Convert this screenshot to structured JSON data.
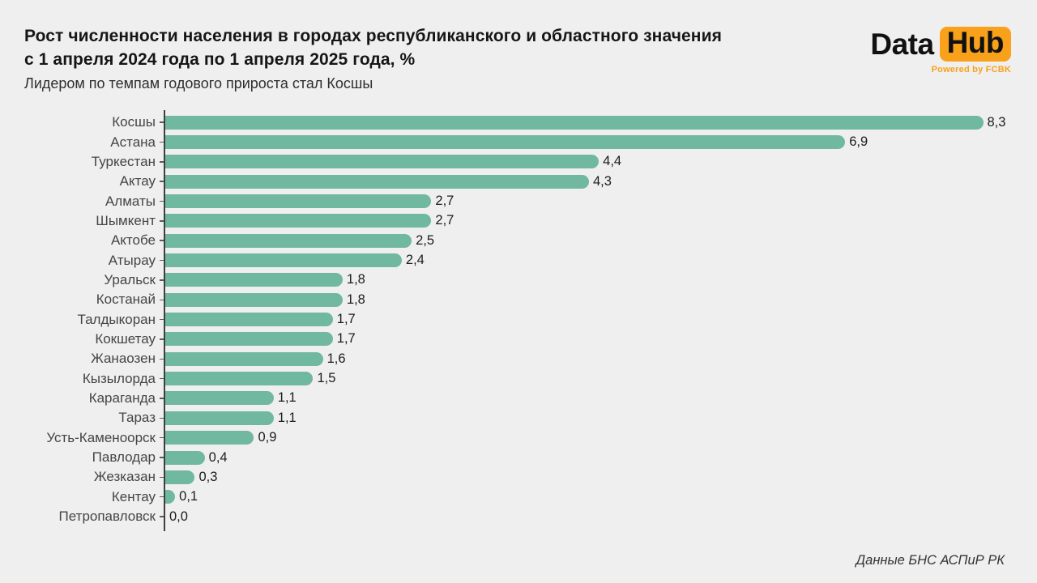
{
  "page": {
    "background": "#efeff0"
  },
  "header": {
    "title_line1": "Рост численности населения в городах республиканского и областного значения",
    "title_line2": "с 1 апреля 2024 года по 1 апреля 2025 года, %",
    "subtitle": "Лидером по темпам годового прироста стал Косшы"
  },
  "logo": {
    "part1": "Data",
    "part2": "Hub",
    "tagline": "Powered by FCBK",
    "accent_color": "#f9a11b"
  },
  "footer": {
    "source": "Данные БНС АСПиР РК"
  },
  "chart_data": {
    "type": "bar",
    "orientation": "horizontal",
    "title": "Рост численности населения в городах республиканского и областного значения с 1 апреля 2024 года по 1 апреля 2025 года, %",
    "xlabel": "",
    "ylabel": "",
    "xlim": [
      0,
      8.6
    ],
    "grid": false,
    "legend": false,
    "bar_color": "#70b8a0",
    "categories": [
      "Косшы",
      "Астана",
      "Туркестан",
      "Актау",
      "Алматы",
      "Шымкент",
      "Актобе",
      "Атырау",
      "Уральск",
      "Костанай",
      "Талдыкоран",
      "Кокшетау",
      "Жанаозен",
      "Кызылорда",
      "Караганда",
      "Тараз",
      "Усть-Каменоорск",
      "Павлодар",
      "Жезказан",
      "Кентау",
      "Петропавловск"
    ],
    "values": [
      8.3,
      6.9,
      4.4,
      4.3,
      2.7,
      2.7,
      2.5,
      2.4,
      1.8,
      1.8,
      1.7,
      1.7,
      1.6,
      1.5,
      1.1,
      1.1,
      0.9,
      0.4,
      0.3,
      0.1,
      0.0
    ],
    "value_labels": [
      "8,3",
      "6,9",
      "4,4",
      "4,3",
      "2,7",
      "2,7",
      "2,5",
      "2,4",
      "1,8",
      "1,8",
      "1,7",
      "1,7",
      "1,6",
      "1,5",
      "1,1",
      "1,1",
      "0,9",
      "0,4",
      "0,3",
      "0,1",
      "0,0"
    ]
  }
}
